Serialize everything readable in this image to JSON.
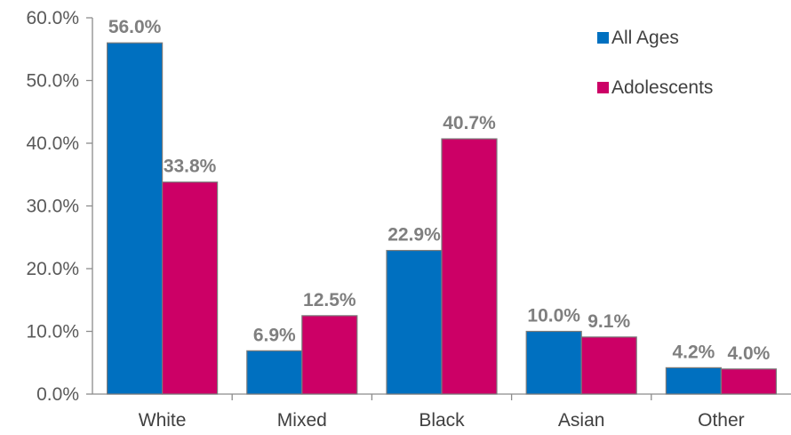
{
  "chart_data": {
    "type": "bar",
    "title": "",
    "xlabel": "",
    "ylabel": "",
    "categories": [
      "White",
      "Mixed",
      "Black",
      "Asian",
      "Other"
    ],
    "series": [
      {
        "name": "All Ages",
        "color": "#0070c0",
        "values": [
          56.0,
          6.9,
          22.9,
          10.0,
          4.2
        ],
        "labels": [
          "56.0%",
          "6.9%",
          "22.9%",
          "10.0%",
          "4.2%"
        ]
      },
      {
        "name": "Adolescents",
        "color": "#cc0066",
        "values": [
          33.8,
          12.5,
          40.7,
          9.1,
          4.0
        ],
        "labels": [
          "33.8%",
          "12.5%",
          "40.7%",
          "9.1%",
          "4.0%"
        ]
      }
    ],
    "ylim": [
      0,
      60
    ],
    "yticks": [
      0,
      10,
      20,
      30,
      40,
      50,
      60
    ],
    "ytick_labels": [
      "0.0%",
      "10.0%",
      "20.0%",
      "30.0%",
      "40.0%",
      "50.0%",
      "60.0%"
    ],
    "grid": false,
    "legend_position": "top-right"
  }
}
